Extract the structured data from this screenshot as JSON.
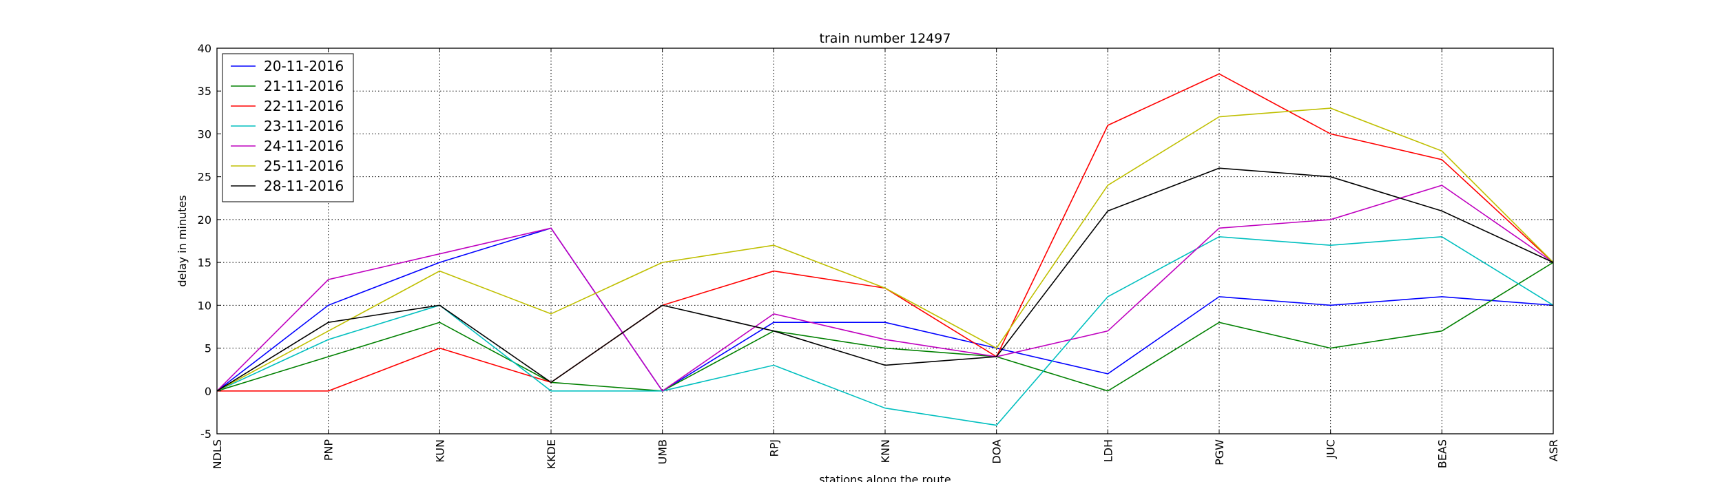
{
  "chart_data": {
    "type": "line",
    "title": "train number 12497",
    "xlabel": "stations along the route",
    "ylabel": "delay in minutes",
    "categories": [
      "NDLS",
      "PNP",
      "KUN",
      "KKDE",
      "UMB",
      "RPJ",
      "KNN",
      "DOA",
      "LDH",
      "PGW",
      "JUC",
      "BEAS",
      "ASR"
    ],
    "ylim": [
      -5,
      40
    ],
    "yticks": [
      -5,
      0,
      5,
      10,
      15,
      20,
      25,
      30,
      35,
      40
    ],
    "grid": true,
    "legend_position": "top-left",
    "series": [
      {
        "name": "20-11-2016",
        "color": "#0000ff",
        "values": [
          0,
          10,
          15,
          19,
          0,
          8,
          8,
          5,
          2,
          11,
          10,
          11,
          10
        ]
      },
      {
        "name": "21-11-2016",
        "color": "#008000",
        "values": [
          0,
          4,
          8,
          1,
          0,
          7,
          5,
          4,
          0,
          8,
          5,
          7,
          15
        ]
      },
      {
        "name": "22-11-2016",
        "color": "#ff0000",
        "values": [
          0,
          0,
          5,
          1,
          10,
          14,
          12,
          4,
          31,
          37,
          30,
          27,
          15
        ]
      },
      {
        "name": "23-11-2016",
        "color": "#00bfbf",
        "values": [
          0,
          6,
          10,
          0,
          0,
          3,
          -2,
          -4,
          11,
          18,
          17,
          18,
          10
        ]
      },
      {
        "name": "24-11-2016",
        "color": "#bf00bf",
        "values": [
          0,
          13,
          16,
          19,
          0,
          9,
          6,
          4,
          7,
          19,
          20,
          24,
          15
        ]
      },
      {
        "name": "25-11-2016",
        "color": "#bfbf00",
        "values": [
          0,
          7,
          14,
          9,
          15,
          17,
          12,
          5,
          24,
          32,
          33,
          28,
          15
        ]
      },
      {
        "name": "28-11-2016",
        "color": "#000000",
        "values": [
          0,
          8,
          10,
          1,
          10,
          7,
          3,
          4,
          21,
          26,
          25,
          21,
          15
        ]
      }
    ]
  }
}
